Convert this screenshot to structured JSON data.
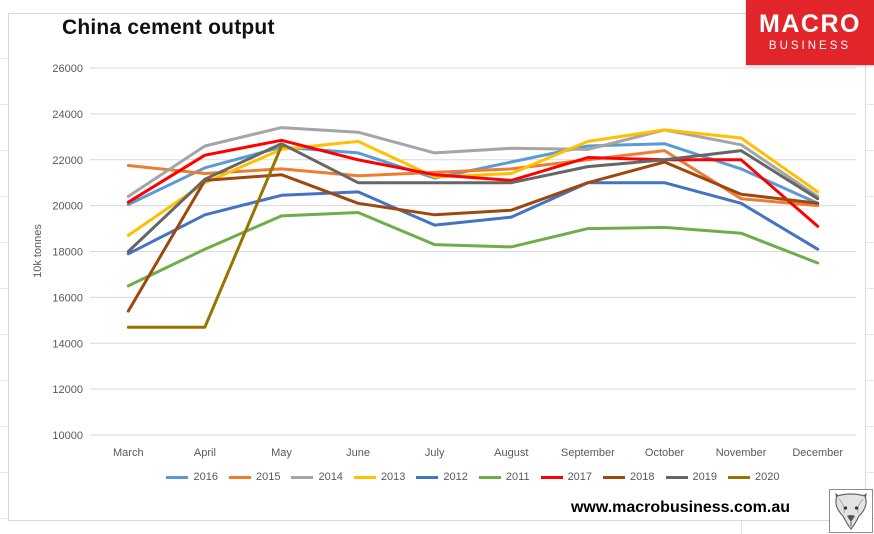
{
  "header": {
    "logo": {
      "line1": "MACRO",
      "line2": "BUSINESS",
      "bg_color": "#E2242B"
    }
  },
  "chart_data": {
    "type": "line",
    "title": "China cement output",
    "xlabel": "",
    "ylabel": "10k tonnes",
    "ylim": [
      10000,
      26000
    ],
    "yticks": [
      10000,
      12000,
      14000,
      16000,
      18000,
      20000,
      22000,
      24000,
      26000
    ],
    "grid": true,
    "legend_position": "bottom",
    "categories": [
      "March",
      "April",
      "May",
      "June",
      "July",
      "August",
      "September",
      "October",
      "November",
      "December"
    ],
    "series": [
      {
        "name": "2016",
        "color": "#5B9BD5",
        "values": [
          20050,
          21650,
          22550,
          22300,
          21200,
          21900,
          22600,
          22700,
          21600,
          20100
        ]
      },
      {
        "name": "2015",
        "color": "#ED7D31",
        "values": [
          21750,
          21400,
          21600,
          21300,
          21450,
          21600,
          22000,
          22400,
          20300,
          20000
        ]
      },
      {
        "name": "2014",
        "color": "#A5A5A5",
        "values": [
          20400,
          22600,
          23400,
          23200,
          22300,
          22500,
          22450,
          23300,
          22650,
          20400
        ]
      },
      {
        "name": "2013",
        "color": "#FFC000",
        "values": [
          18700,
          21000,
          22450,
          22800,
          21250,
          21400,
          22800,
          23300,
          22950,
          20600
        ]
      },
      {
        "name": "2012",
        "color": "#4472C4",
        "values": [
          17900,
          19600,
          20450,
          20600,
          19150,
          19500,
          21000,
          21000,
          20100,
          18100
        ]
      },
      {
        "name": "2011",
        "color": "#70AD47",
        "values": [
          16500,
          18100,
          19550,
          19700,
          18300,
          18200,
          19000,
          19050,
          18800,
          17500
        ]
      },
      {
        "name": "2017",
        "color": "#FF0000",
        "values": [
          20150,
          22200,
          22850,
          22000,
          21350,
          21100,
          22100,
          22000,
          22000,
          19100
        ]
      },
      {
        "name": "2018",
        "color": "#9E480E",
        "values": [
          15400,
          21100,
          21350,
          20100,
          19600,
          19800,
          21000,
          21900,
          20500,
          20100
        ]
      },
      {
        "name": "2019",
        "color": "#666666",
        "values": [
          18000,
          21150,
          22700,
          21000,
          21000,
          21000,
          21700,
          22000,
          22400,
          20300
        ]
      },
      {
        "name": "2020",
        "color": "#997300",
        "values": [
          14700,
          14700,
          22600,
          null,
          null,
          null,
          null,
          null,
          null,
          null
        ]
      }
    ]
  },
  "footer": {
    "website": "www.macrobusiness.com.au",
    "fox_icon": "fox-head-sketch-icon"
  }
}
